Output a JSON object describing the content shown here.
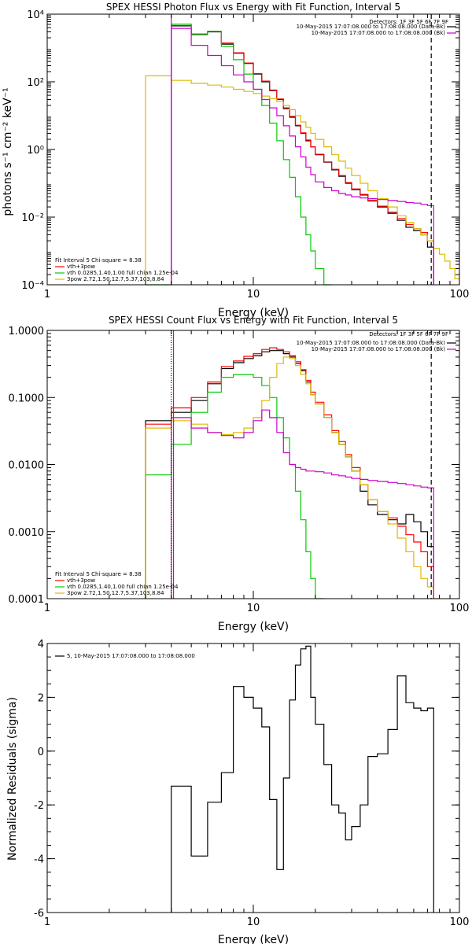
{
  "chart_data": [
    {
      "type": "line",
      "title": "SPEX HESSI Photon Flux vs Energy with Fit Function, Interval 5",
      "xlabel": "Energy (keV)",
      "ylabel": "photons s⁻¹ cm⁻² keV⁻¹",
      "xscale": "log",
      "yscale": "log",
      "xlim": [
        1,
        100
      ],
      "ylim": [
        0.0001,
        10000
      ],
      "x_ticks": [
        {
          "v": 1,
          "label": "1"
        },
        {
          "v": 10,
          "label": "10"
        },
        {
          "v": 100,
          "label": "100"
        }
      ],
      "y_ticks": [
        {
          "v": 0.0001,
          "label": "10⁻⁴"
        },
        {
          "v": 0.01,
          "label": "10⁻²"
        },
        {
          "v": 1,
          "label": "10⁰"
        },
        {
          "v": 100,
          "label": "10²"
        },
        {
          "v": 10000,
          "label": "10⁴"
        }
      ],
      "detectors_label": "Detectors: 1F 3F 5F 6F 7F 9F",
      "legend_top": [
        {
          "text": "10-May-2015 17:07:08.000 to 17:08:08.000 (Data-Bk)",
          "color": "#000000"
        },
        {
          "text": "10-May-2015 17:07:08.000 to 17:08:08.000 (Bk)",
          "color": "#cc00cc"
        }
      ],
      "legend_bottom_title": "Fit Interval 5   Chi-square = 8.38",
      "legend_bottom": [
        {
          "text": "vth+3pow",
          "color": "#ff0000"
        },
        {
          "text": "vth 0.0285,1.40,1.00  full chian 1.25e-04",
          "color": "#00cc00"
        },
        {
          "text": "3pow 2.72,1.50,12.7,5.37,103,8.84",
          "color": "#ddbb00"
        }
      ],
      "vlines": [
        {
          "x": 4,
          "color": "#cc00cc",
          "dash": "none"
        },
        {
          "x": 73,
          "color": "#000000",
          "dash": "6,4"
        }
      ],
      "bin_edges": [
        3,
        4,
        5,
        6,
        7,
        8,
        9,
        10,
        11,
        12,
        13,
        14,
        15,
        16,
        17,
        18,
        19,
        20,
        22,
        24,
        26,
        28,
        30,
        33,
        36,
        40,
        45,
        50,
        55,
        60,
        65,
        70,
        75,
        80,
        85,
        90,
        95,
        100
      ],
      "series": [
        {
          "color": "#000000",
          "values": [
            null,
            4500,
            2500,
            3000,
            1300,
            700,
            350,
            170,
            100,
            55,
            30,
            16,
            9,
            5,
            3,
            1.8,
            1.2,
            0.7,
            0.42,
            0.25,
            0.16,
            0.1,
            0.065,
            0.045,
            0.03,
            0.02,
            0.013,
            0.008,
            0.005,
            0.004,
            0.003,
            0.0013,
            null,
            null,
            null,
            null,
            null
          ]
        },
        {
          "color": "#ff0000",
          "values": [
            null,
            5000,
            2600,
            3100,
            1400,
            720,
            360,
            175,
            105,
            57,
            31,
            17,
            9.5,
            5.2,
            3.1,
            1.9,
            1.2,
            0.72,
            0.43,
            0.26,
            0.17,
            0.105,
            0.068,
            0.047,
            0.031,
            0.021,
            0.014,
            0.009,
            0.006,
            0.0045,
            0.0035,
            0.002,
            null,
            null,
            null,
            null,
            null
          ]
        },
        {
          "color": "#00cc00",
          "values": [
            0.0001,
            5000,
            2600,
            3100,
            1100,
            450,
            170,
            60,
            20,
            6,
            1.8,
            0.5,
            0.15,
            0.04,
            0.01,
            0.003,
            0.001,
            0.0003,
            0.0001,
            null,
            null,
            null,
            null,
            null,
            null,
            null,
            null,
            null,
            null,
            null,
            null,
            null,
            null,
            null,
            null,
            null,
            null
          ]
        },
        {
          "color": "#ddbb00",
          "values": [
            150,
            110,
            90,
            80,
            70,
            60,
            52,
            45,
            38,
            32,
            26,
            20,
            15,
            10,
            6.5,
            4.5,
            3,
            2,
            1.2,
            0.7,
            0.45,
            0.28,
            0.17,
            0.1,
            0.06,
            0.035,
            0.02,
            0.011,
            0.007,
            0.0045,
            0.003,
            0.002,
            0.0012,
            0.0008,
            0.0005,
            0.0003,
            0.00015
          ]
        },
        {
          "color": "#cc00cc",
          "values": [
            null,
            3800,
            1200,
            600,
            300,
            160,
            100,
            60,
            30,
            17,
            10,
            5,
            2.5,
            1.2,
            0.6,
            0.3,
            0.18,
            0.11,
            0.075,
            0.06,
            0.05,
            0.045,
            0.04,
            0.037,
            0.035,
            0.033,
            0.031,
            0.029,
            0.027,
            0.026,
            0.024,
            0.022,
            null,
            null,
            null,
            null,
            null
          ]
        }
      ]
    },
    {
      "type": "line",
      "title": "SPEX HESSI Count Flux vs Energy with Fit Function, Interval 5",
      "xlabel": "Energy (keV)",
      "ylabel": "",
      "xscale": "log",
      "yscale": "log",
      "xlim": [
        1,
        100
      ],
      "ylim": [
        0.0001,
        1
      ],
      "x_ticks": [
        {
          "v": 1,
          "label": "1"
        },
        {
          "v": 10,
          "label": "10"
        },
        {
          "v": 100,
          "label": "100"
        }
      ],
      "y_ticks": [
        {
          "v": 0.0001,
          "label": "0.0001"
        },
        {
          "v": 0.001,
          "label": "0.0010"
        },
        {
          "v": 0.01,
          "label": "0.0100"
        },
        {
          "v": 0.1,
          "label": "0.1000"
        },
        {
          "v": 1,
          "label": "1.0000"
        }
      ],
      "detectors_label": "Detectors: 1F 3F 5F 6F 7F 9F",
      "legend_top": [
        {
          "text": "10-May-2015 17:07:08.000 to 17:08:08.000 (Data-Bk)",
          "color": "#000000"
        },
        {
          "text": "10-May-2015 17:07:08.000 to 17:08:08.000 (Bk)",
          "color": "#cc00cc"
        }
      ],
      "legend_bottom_title": "Fit Interval 5   Chi-square = 8.38",
      "legend_bottom": [
        {
          "text": "vth+3pow",
          "color": "#ff0000"
        },
        {
          "text": "vth 0.0285,1.40,1.00  full chian 1.25e-04",
          "color": "#00cc00"
        },
        {
          "text": "3pow 2.72,1.50,12.7,5.37,103,8.84",
          "color": "#ddbb00"
        }
      ],
      "vlines": [
        {
          "x": 4,
          "color": "#000000",
          "dash": "1,2"
        },
        {
          "x": 4.1,
          "color": "#cc00cc",
          "dash": "none"
        },
        {
          "x": 73,
          "color": "#000000",
          "dash": "6,4"
        }
      ],
      "bin_edges": [
        3,
        4,
        5,
        6,
        7,
        8,
        9,
        10,
        11,
        12,
        13,
        14,
        15,
        16,
        17,
        18,
        19,
        20,
        22,
        24,
        26,
        28,
        30,
        33,
        36,
        40,
        45,
        50,
        55,
        60,
        65,
        70,
        75,
        80,
        85,
        90,
        95,
        100
      ],
      "series": [
        {
          "color": "#000000",
          "values": [
            0.045,
            0.06,
            0.09,
            0.16,
            0.27,
            0.33,
            0.38,
            0.42,
            0.48,
            0.5,
            0.5,
            0.45,
            0.4,
            0.32,
            0.25,
            0.17,
            0.11,
            0.08,
            0.05,
            0.03,
            0.02,
            0.013,
            0.008,
            0.004,
            0.0025,
            0.0018,
            0.0015,
            0.0013,
            0.0018,
            0.0014,
            0.001,
            0.0006,
            null,
            null,
            null,
            null,
            null
          ]
        },
        {
          "color": "#ff0000",
          "values": [
            0.04,
            0.07,
            0.1,
            0.17,
            0.29,
            0.35,
            0.41,
            0.45,
            0.52,
            0.55,
            0.52,
            0.48,
            0.42,
            0.34,
            0.26,
            0.18,
            0.12,
            0.085,
            0.055,
            0.032,
            0.022,
            0.014,
            0.009,
            0.005,
            0.003,
            0.002,
            0.0016,
            0.0012,
            0.0009,
            0.0007,
            0.0005,
            0.0003,
            null,
            null,
            null,
            null,
            null
          ]
        },
        {
          "color": "#00cc00",
          "values": [
            0.007,
            0.02,
            0.06,
            0.12,
            0.2,
            0.22,
            0.22,
            0.2,
            0.15,
            0.1,
            0.05,
            0.025,
            0.01,
            0.004,
            0.0015,
            0.0005,
            0.0002,
            0.0001,
            null,
            null,
            null,
            null,
            null,
            null,
            null,
            null,
            null,
            null,
            null,
            null,
            null,
            null,
            null,
            null,
            null,
            null,
            null
          ]
        },
        {
          "color": "#ddbb00",
          "values": [
            0.035,
            0.045,
            0.04,
            0.03,
            0.028,
            0.03,
            0.035,
            0.05,
            0.09,
            0.2,
            0.32,
            0.4,
            0.38,
            0.3,
            0.22,
            0.16,
            0.11,
            0.08,
            0.05,
            0.03,
            0.02,
            0.013,
            0.008,
            0.005,
            0.003,
            0.002,
            0.0013,
            0.0008,
            0.0005,
            0.0003,
            0.0002,
            0.00015,
            0.0001,
            null,
            null,
            null,
            null
          ]
        },
        {
          "color": "#cc00cc",
          "values": [
            null,
            0.05,
            0.035,
            0.03,
            0.027,
            0.025,
            0.03,
            0.045,
            0.065,
            0.05,
            0.03,
            0.015,
            0.01,
            0.009,
            0.0085,
            0.008,
            0.008,
            0.0078,
            0.0075,
            0.007,
            0.0068,
            0.0065,
            0.0062,
            0.006,
            0.0058,
            0.0056,
            0.0054,
            0.0052,
            0.005,
            0.0048,
            0.0046,
            0.0045,
            null,
            null,
            null,
            null,
            null
          ]
        }
      ]
    },
    {
      "type": "line",
      "title": "",
      "xlabel": "Energy (keV)",
      "ylabel": "Normalized Residuals (sigma)",
      "xscale": "log",
      "yscale": "linear",
      "xlim": [
        1,
        100
      ],
      "ylim": [
        -6,
        4
      ],
      "x_ticks": [
        {
          "v": 1,
          "label": "1"
        },
        {
          "v": 10,
          "label": "10"
        },
        {
          "v": 100,
          "label": "100"
        }
      ],
      "y_ticks": [
        {
          "v": -6,
          "label": "-6"
        },
        {
          "v": -4,
          "label": "-4"
        },
        {
          "v": -2,
          "label": "-2"
        },
        {
          "v": 0,
          "label": "0"
        },
        {
          "v": 2,
          "label": "2"
        },
        {
          "v": 4,
          "label": "4"
        }
      ],
      "legend_top": [
        {
          "text": "5, 10-May-2015 17:07:08.000 to 17:08:08.000",
          "color": "#000000"
        }
      ],
      "bin_edges": [
        4,
        5,
        6,
        7,
        8,
        9,
        10,
        11,
        12,
        13,
        14,
        15,
        16,
        17,
        18,
        19,
        20,
        22,
        24,
        26,
        28,
        30,
        33,
        36,
        40,
        45,
        50,
        55,
        60,
        65,
        70,
        75
      ],
      "series": [
        {
          "color": "#000000",
          "values": [
            -1.3,
            -3.9,
            -1.9,
            -0.8,
            2.4,
            2.0,
            1.6,
            0.9,
            -1.8,
            -4.4,
            -1.0,
            1.9,
            3.2,
            3.8,
            3.9,
            2.0,
            1.0,
            -0.5,
            -2.0,
            -2.3,
            -3.3,
            -2.8,
            -2.0,
            -0.2,
            -0.1,
            0.8,
            2.8,
            1.8,
            1.6,
            1.5,
            1.6
          ]
        }
      ]
    }
  ]
}
